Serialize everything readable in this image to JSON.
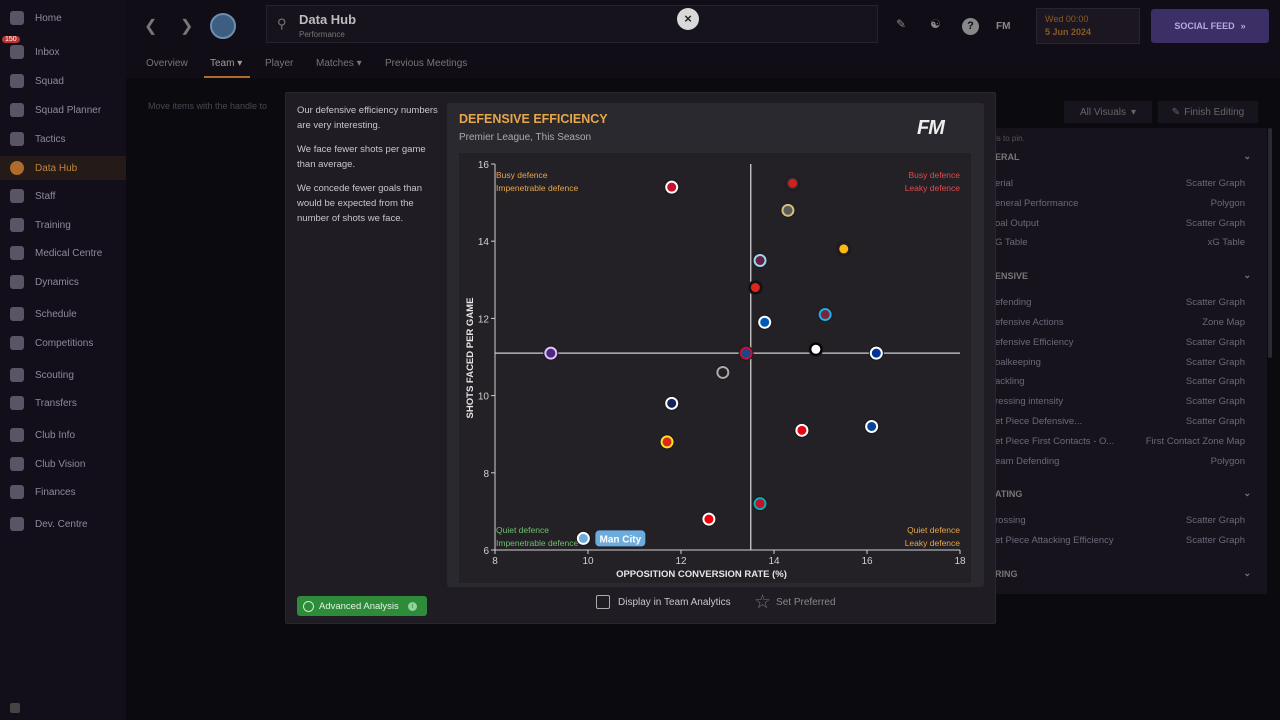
{
  "sidebar": {
    "items": [
      {
        "label": "Home",
        "icon": "home-icon"
      },
      {
        "label": "Inbox",
        "icon": "inbox-icon",
        "badge": "150"
      },
      {
        "label": "Squad",
        "icon": "shirt-icon"
      },
      {
        "label": "Squad Planner",
        "icon": "planner-icon"
      },
      {
        "label": "Tactics",
        "icon": "tactics-icon"
      },
      {
        "label": "Data Hub",
        "icon": "data-hub-icon",
        "active": true
      },
      {
        "label": "Staff",
        "icon": "staff-icon"
      },
      {
        "label": "Training",
        "icon": "training-icon"
      },
      {
        "label": "Medical Centre",
        "icon": "medical-icon"
      },
      {
        "label": "Dynamics",
        "icon": "dynamics-icon"
      },
      {
        "label": "Schedule",
        "icon": "calendar-icon"
      },
      {
        "label": "Competitions",
        "icon": "trophy-icon"
      },
      {
        "label": "Scouting",
        "icon": "scouting-icon"
      },
      {
        "label": "Transfers",
        "icon": "transfers-icon"
      },
      {
        "label": "Club Info",
        "icon": "shield-icon"
      },
      {
        "label": "Club Vision",
        "icon": "vision-icon"
      },
      {
        "label": "Finances",
        "icon": "finances-icon"
      },
      {
        "label": "Dev. Centre",
        "icon": "dev-centre-icon"
      }
    ]
  },
  "header": {
    "title": "Data Hub",
    "subtitle": "Performance",
    "date_line1": "Wed 00:00",
    "date_line2": "5 Jun 2024",
    "social_feed": "SOCIAL FEED",
    "fm_label": "FM",
    "help": "?"
  },
  "tabs": [
    "Overview",
    "Team",
    "Player",
    "Matches",
    "Previous Meetings"
  ],
  "hint": "Move items with the handle to",
  "right_panel": {
    "all_visuals": "All Visuals",
    "finish_editing": "Finish Editing",
    "pin_hint": "ls to pin.",
    "sections": [
      {
        "title": "ERAL",
        "rows": [
          {
            "label": "erial",
            "type": "Scatter Graph"
          },
          {
            "label": "eneral Performance",
            "type": "Polygon"
          },
          {
            "label": "oal Output",
            "type": "Scatter Graph"
          },
          {
            "label": "G Table",
            "type": "xG Table"
          }
        ]
      },
      {
        "title": "ENSIVE",
        "rows": [
          {
            "label": "efending",
            "type": "Scatter Graph"
          },
          {
            "label": "efensive Actions",
            "type": "Zone Map"
          },
          {
            "label": "efensive Efficiency",
            "type": "Scatter Graph"
          },
          {
            "label": "oalkeeping",
            "type": "Scatter Graph"
          },
          {
            "label": "ackling",
            "type": "Scatter Graph"
          },
          {
            "label": "ressing intensity",
            "type": "Scatter Graph"
          },
          {
            "label": "et Piece Defensive...",
            "type": "Scatter Graph"
          },
          {
            "label": "et Piece First Contacts - O...",
            "type": "First Contact Zone Map"
          },
          {
            "label": "eam Defending",
            "type": "Polygon"
          }
        ]
      },
      {
        "title": "ATING",
        "rows": [
          {
            "label": "rossing",
            "type": "Scatter Graph"
          },
          {
            "label": "et Piece Attacking Efficiency",
            "type": "Scatter Graph"
          }
        ]
      },
      {
        "title": "RING",
        "rows": []
      }
    ]
  },
  "modal": {
    "insights": [
      "Our defensive efficiency numbers are very interesting.",
      "We face fewer shots per game than average.",
      "We concede fewer goals than would be expected from the number of shots we face."
    ],
    "advanced_analysis": "Advanced Analysis",
    "display_in_team_analytics": "Display in Team Analytics",
    "set_preferred": "Set Preferred",
    "close": "×",
    "logo": "FM"
  },
  "chart_data": {
    "type": "scatter",
    "title": "DEFENSIVE EFFICIENCY",
    "subtitle": "Premier League, This Season",
    "xlabel": "OPPOSITION CONVERSION RATE (%)",
    "ylabel": "SHOTS FACED PER GAME",
    "xlim": [
      8,
      18
    ],
    "ylim": [
      6,
      16
    ],
    "xticks": [
      8,
      10,
      12,
      14,
      16,
      18
    ],
    "yticks": [
      6,
      8,
      10,
      12,
      14,
      16
    ],
    "x_mean": 13.5,
    "y_mean": 11.1,
    "quadrants": {
      "top_left": [
        "Busy defence",
        "Impenetrable defence"
      ],
      "top_right": [
        "Busy defence",
        "Leaky defence"
      ],
      "bottom_left": [
        "Quiet defence",
        "Impenetrable defence"
      ],
      "bottom_right": [
        "Quiet defence",
        "Leaky defence"
      ]
    },
    "highlight_label": "Man City",
    "points": [
      {
        "x": 11.8,
        "y": 15.4,
        "color": "#c8102e",
        "ring": "#ffffff"
      },
      {
        "x": 14.4,
        "y": 15.5,
        "color": "#cc2222",
        "ring": "#2b2930"
      },
      {
        "x": 14.3,
        "y": 14.8,
        "color": "#5a5a5a",
        "ring": "#d0c080"
      },
      {
        "x": 15.5,
        "y": 13.8,
        "color": "#fdb913",
        "ring": "#231f20"
      },
      {
        "x": 13.7,
        "y": 13.5,
        "color": "#6c1d45",
        "ring": "#99d6ea"
      },
      {
        "x": 13.6,
        "y": 12.8,
        "color": "#da291c",
        "ring": "#111111"
      },
      {
        "x": 15.1,
        "y": 12.1,
        "color": "#7a263a",
        "ring": "#1bb1e7"
      },
      {
        "x": 13.8,
        "y": 11.9,
        "color": "#0057b8",
        "ring": "#ffffff"
      },
      {
        "x": 14.9,
        "y": 11.2,
        "color": "#ffffff",
        "ring": "#000000"
      },
      {
        "x": 16.2,
        "y": 11.1,
        "color": "#003399",
        "ring": "#ffffff"
      },
      {
        "x": 9.2,
        "y": 11.1,
        "color": "#4a2a7a",
        "ring": "#e0c0ff"
      },
      {
        "x": 13.4,
        "y": 11.1,
        "color": "#1b458f",
        "ring": "#c4122e"
      },
      {
        "x": 12.9,
        "y": 10.6,
        "color": "#241f20",
        "ring": "#aaaaaa"
      },
      {
        "x": 11.8,
        "y": 9.8,
        "color": "#132257",
        "ring": "#ffffff"
      },
      {
        "x": 14.6,
        "y": 9.1,
        "color": "#e30613",
        "ring": "#ffffff"
      },
      {
        "x": 16.1,
        "y": 9.2,
        "color": "#034694",
        "ring": "#ffffff"
      },
      {
        "x": 11.7,
        "y": 8.8,
        "color": "#da291c",
        "ring": "#fbe122"
      },
      {
        "x": 13.7,
        "y": 7.2,
        "color": "#c8102e",
        "ring": "#00b2a9"
      },
      {
        "x": 12.6,
        "y": 6.8,
        "color": "#ef0107",
        "ring": "#ffffff"
      },
      {
        "x": 9.9,
        "y": 6.3,
        "color": "#6cabdd",
        "ring": "#ffffff",
        "highlight": true
      }
    ],
    "colors": {
      "title": "#e8a64a",
      "busy_defence": "#e8a64a",
      "leaky_defence": "#e04b4b",
      "quiet_defence": "#6fbf6f",
      "highlight_tag": "#6cabdd"
    }
  }
}
